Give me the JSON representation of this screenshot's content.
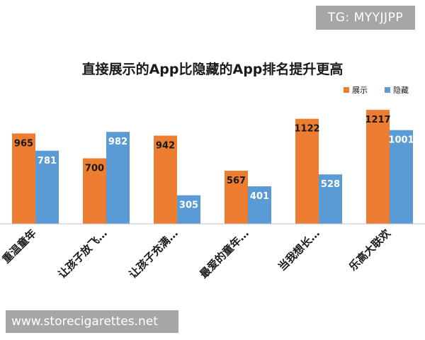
{
  "watermark_top": "TG: MYYJJPP",
  "watermark_bottom": "www.storecigarettes.net",
  "chart_data": {
    "type": "bar",
    "title": "直接展示的App比隐藏的App排名提升更高",
    "categories": [
      "重温童年",
      "让孩子放飞…",
      "让孩子充满…",
      "最爱的童年…",
      "当我想长…",
      "乐高大联欢"
    ],
    "series": [
      {
        "name": "展示",
        "color": "#ed7d31",
        "values": [
          965,
          700,
          942,
          567,
          1122,
          1217
        ]
      },
      {
        "name": "隐藏",
        "color": "#5b9bd5",
        "values": [
          781,
          982,
          305,
          401,
          528,
          1001
        ]
      }
    ],
    "ylim": [
      0,
      1300
    ],
    "legend_position": "top-right",
    "grid": false
  }
}
